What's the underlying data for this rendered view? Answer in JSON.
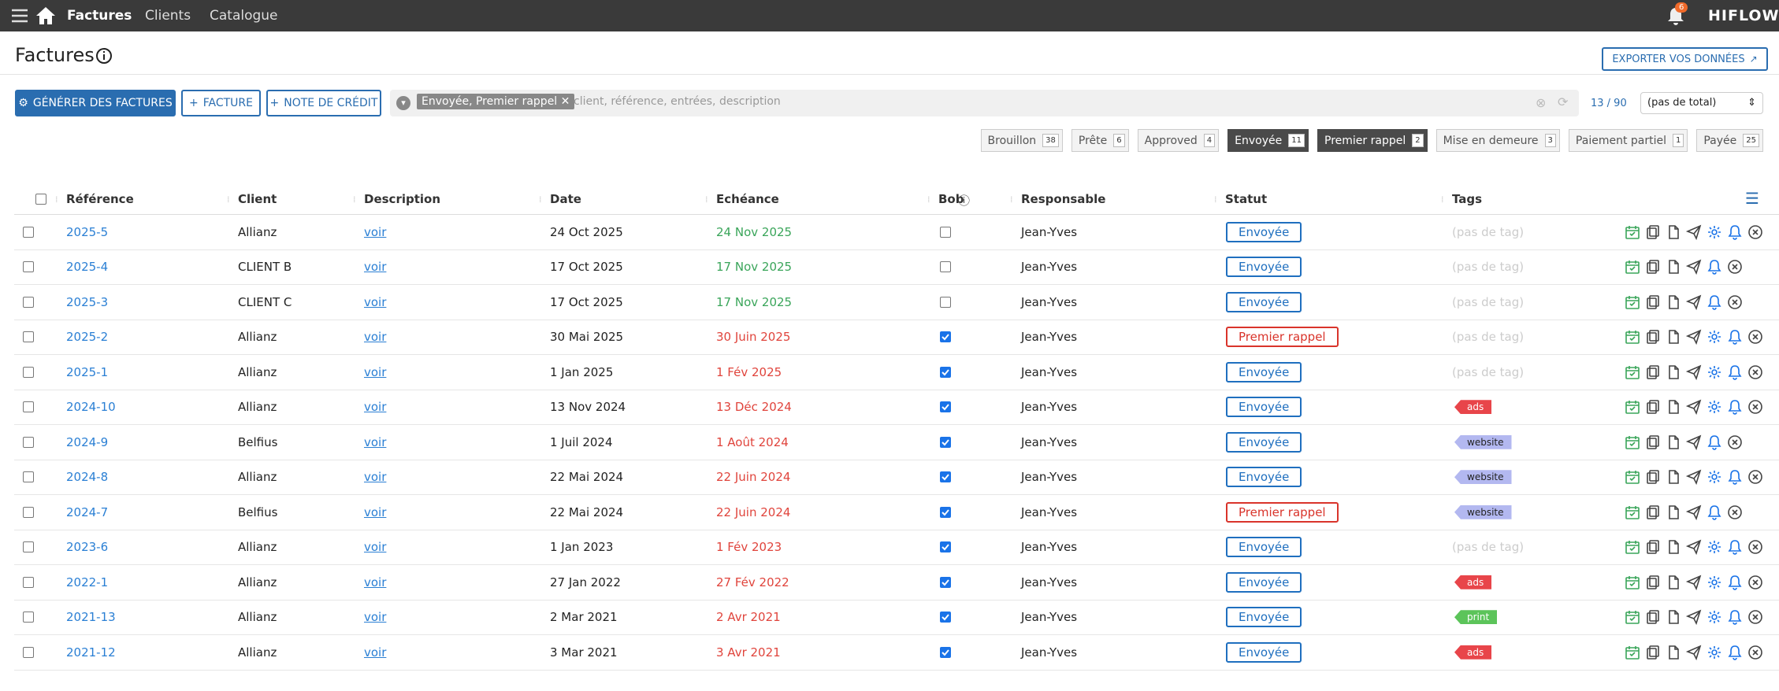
{
  "nav": {
    "items": [
      "Factures",
      "Clients",
      "Catalogue"
    ],
    "notifications": "6",
    "brand": "HIFLOW"
  },
  "header": {
    "title": "Factures",
    "export": "EXPORTER VOS DONNÉES"
  },
  "toolbar": {
    "generate": "GÉNÉRER DES FACTURES",
    "invoice": "FACTURE",
    "credit_note": "NOTE DE CRÉDIT",
    "filter_chip": "Envoyée, Premier rappel",
    "search_placeholder": "client, référence, entrées, description",
    "count": "13 / 90",
    "total_select": "(pas de total)"
  },
  "status_filters": [
    {
      "label": "Brouillon",
      "count": "38",
      "active": false
    },
    {
      "label": "Prête",
      "count": "6",
      "active": false
    },
    {
      "label": "Approved",
      "count": "4",
      "active": false
    },
    {
      "label": "Envoyée",
      "count": "11",
      "active": true
    },
    {
      "label": "Premier rappel",
      "count": "2",
      "active": true
    },
    {
      "label": "Mise en demeure",
      "count": "3",
      "active": false
    },
    {
      "label": "Paiement partiel",
      "count": "1",
      "active": false
    },
    {
      "label": "Payée",
      "count": "25",
      "active": false
    }
  ],
  "table": {
    "columns": [
      "Référence",
      "Client",
      "Description",
      "Date",
      "Echéance",
      "Bob",
      "Responsable",
      "Statut",
      "Tags"
    ],
    "rows": [
      {
        "reference": "2025-5",
        "client": "Allianz",
        "description": "voir",
        "date": "24 Oct 2025",
        "echeance": "24 Nov 2025",
        "late": false,
        "bob": false,
        "responsable": "Jean-Yves",
        "statut": "Envoyée",
        "statut_color": "#1f6fbf",
        "tag": "(pas de tag)",
        "tag_color": null,
        "synced": true
      },
      {
        "reference": "2025-4",
        "client": "CLIENT B",
        "description": "voir",
        "date": "17 Oct 2025",
        "echeance": "17 Nov 2025",
        "late": false,
        "bob": false,
        "responsable": "Jean-Yves",
        "statut": "Envoyée",
        "statut_color": "#1f6fbf",
        "tag": "(pas de tag)",
        "tag_color": null,
        "synced": false
      },
      {
        "reference": "2025-3",
        "client": "CLIENT C",
        "description": "voir",
        "date": "17 Oct 2025",
        "echeance": "17 Nov 2025",
        "late": false,
        "bob": false,
        "responsable": "Jean-Yves",
        "statut": "Envoyée",
        "statut_color": "#1f6fbf",
        "tag": "(pas de tag)",
        "tag_color": null,
        "synced": false
      },
      {
        "reference": "2025-2",
        "client": "Allianz",
        "description": "voir",
        "date": "30 Mai 2025",
        "echeance": "30 Juin 2025",
        "late": true,
        "bob": true,
        "responsable": "Jean-Yves",
        "statut": "Premier rappel",
        "statut_color": "#d9342b",
        "tag": "(pas de tag)",
        "tag_color": null,
        "synced": true
      },
      {
        "reference": "2025-1",
        "client": "Allianz",
        "description": "voir",
        "date": "1 Jan 2025",
        "echeance": "1 Fév 2025",
        "late": true,
        "bob": true,
        "responsable": "Jean-Yves",
        "statut": "Envoyée",
        "statut_color": "#1f6fbf",
        "tag": "(pas de tag)",
        "tag_color": null,
        "synced": true
      },
      {
        "reference": "2024-10",
        "client": "Allianz",
        "description": "voir",
        "date": "13 Nov 2024",
        "echeance": "13 Déc 2024",
        "late": true,
        "bob": true,
        "responsable": "Jean-Yves",
        "statut": "Envoyée",
        "statut_color": "#1f6fbf",
        "tag": "ads",
        "tag_color": "#e8454a",
        "synced": true
      },
      {
        "reference": "2024-9",
        "client": "Belfius",
        "description": "voir",
        "date": "1 Juil 2024",
        "echeance": "1 Août 2024",
        "late": true,
        "bob": true,
        "responsable": "Jean-Yves",
        "statut": "Envoyée",
        "statut_color": "#1f6fbf",
        "tag": "website",
        "tag_color": "#b3b8f0",
        "synced": false
      },
      {
        "reference": "2024-8",
        "client": "Allianz",
        "description": "voir",
        "date": "22 Mai 2024",
        "echeance": "22 Juin 2024",
        "late": true,
        "bob": true,
        "responsable": "Jean-Yves",
        "statut": "Envoyée",
        "statut_color": "#1f6fbf",
        "tag": "website",
        "tag_color": "#b3b8f0",
        "synced": true
      },
      {
        "reference": "2024-7",
        "client": "Belfius",
        "description": "voir",
        "date": "22 Mai 2024",
        "echeance": "22 Juin 2024",
        "late": true,
        "bob": true,
        "responsable": "Jean-Yves",
        "statut": "Premier rappel",
        "statut_color": "#d9342b",
        "tag": "website",
        "tag_color": "#b3b8f0",
        "synced": false
      },
      {
        "reference": "2023-6",
        "client": "Allianz",
        "description": "voir",
        "date": "1 Jan 2023",
        "echeance": "1 Fév 2023",
        "late": true,
        "bob": true,
        "responsable": "Jean-Yves",
        "statut": "Envoyée",
        "statut_color": "#1f6fbf",
        "tag": "(pas de tag)",
        "tag_color": null,
        "synced": true
      },
      {
        "reference": "2022-1",
        "client": "Allianz",
        "description": "voir",
        "date": "27 Jan 2022",
        "echeance": "27 Fév 2022",
        "late": true,
        "bob": true,
        "responsable": "Jean-Yves",
        "statut": "Envoyée",
        "statut_color": "#1f6fbf",
        "tag": "ads",
        "tag_color": "#e8454a",
        "synced": true
      },
      {
        "reference": "2021-13",
        "client": "Allianz",
        "description": "voir",
        "date": "2 Mar 2021",
        "echeance": "2 Avr 2021",
        "late": true,
        "bob": true,
        "responsable": "Jean-Yves",
        "statut": "Envoyée",
        "statut_color": "#1f6fbf",
        "tag": "print",
        "tag_color": "#5cc45a",
        "synced": true
      },
      {
        "reference": "2021-12",
        "client": "Allianz",
        "description": "voir",
        "date": "3 Mar 2021",
        "echeance": "3 Avr 2021",
        "late": true,
        "bob": true,
        "responsable": "Jean-Yves",
        "statut": "Envoyée",
        "statut_color": "#1f6fbf",
        "tag": "ads",
        "tag_color": "#e8454a",
        "synced": true
      }
    ]
  }
}
